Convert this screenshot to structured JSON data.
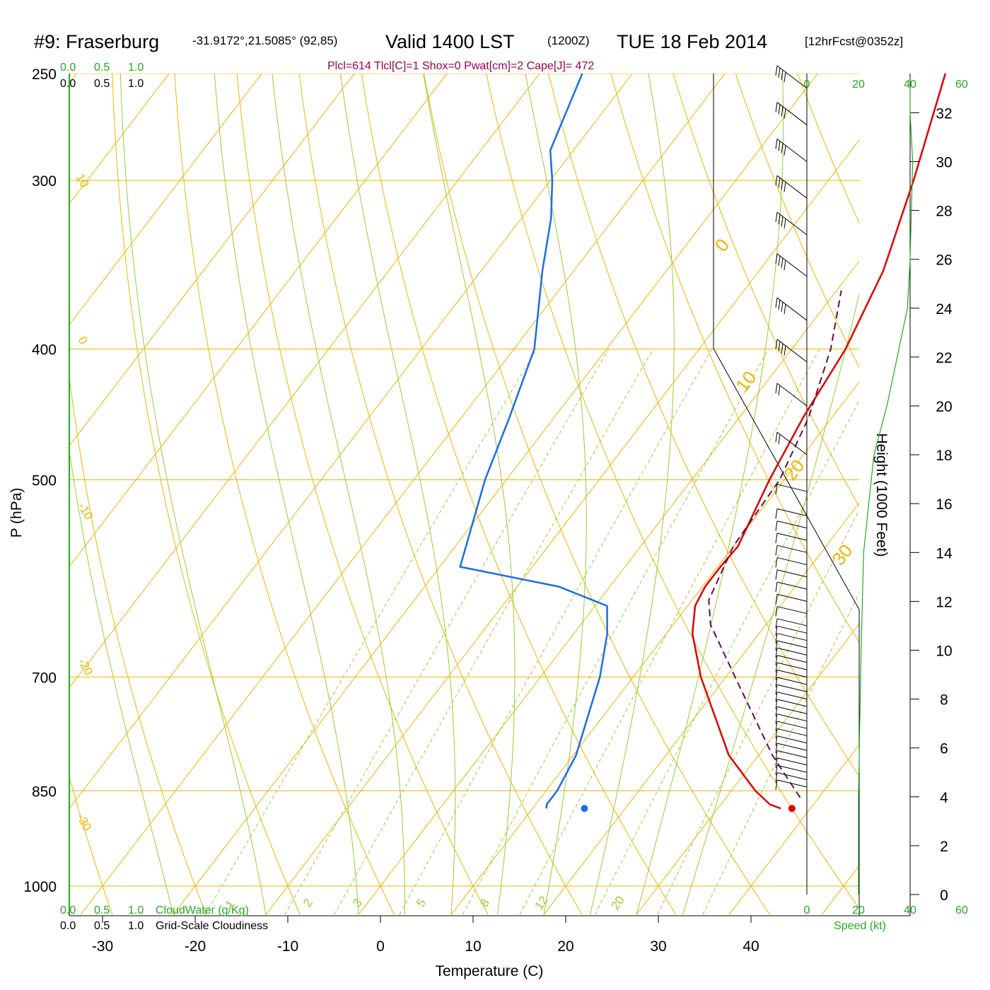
{
  "header": {
    "station": "#9: Fraserburg",
    "coords": "-31.9172°,21.5085° (92,85)",
    "valid": "Valid 1400 LST",
    "zulu": "(1200Z)",
    "date": "TUE 18 Feb 2014",
    "forecast": "[12hrFcst@0352z]",
    "params": "Plcl=614 Tlcl[C]=1 Shox=0 Pwat[cm]=2 Cape[J]= 472"
  },
  "colors": {
    "isobar": "#f0b400",
    "dry_adiabat": "#f0b400",
    "moist_adiabat": "#99cc33",
    "mixing_ratio": "#99cc33",
    "temperature": "#e00000",
    "dewpoint": "#1a6ee8",
    "parcel": "#6a0a4a",
    "wind_speed": "#22aa22",
    "axis_green": "#22aa22",
    "params_text": "#990055"
  },
  "chart_data": {
    "type": "line",
    "title": "#9: Fraserburg",
    "xlabel": "Temperature (C)",
    "ylabel": "P (hPa)",
    "right_ylabel": "Height (1000 Feet)",
    "pressure_ticks": [
      250,
      300,
      400,
      500,
      700,
      850,
      1000
    ],
    "temperature_ticks": [
      -30,
      -20,
      -10,
      0,
      10,
      20,
      30,
      40
    ],
    "height_ticks": [
      0,
      2,
      4,
      6,
      8,
      10,
      12,
      14,
      16,
      18,
      20,
      22,
      24,
      26,
      28,
      30,
      32
    ],
    "speed_ticks": [
      0,
      20,
      40,
      60
    ],
    "speed_label": "Speed (kt)",
    "cloud_scale": [
      "0.0",
      "0.5",
      "1.0"
    ],
    "cloudwater_label": "CloudWater (g/Kg)",
    "cloudiness_label": "Grid-Scale Cloudiness",
    "dry_adiabat_labels": [
      "10",
      "0",
      "-10",
      "-20",
      "-30"
    ],
    "isotherm_labels": [
      "0",
      "10",
      "20",
      "30"
    ],
    "mixing_ratio_labels": [
      "1",
      "2",
      "3",
      "5",
      "8",
      "12",
      "20"
    ],
    "series": [
      {
        "name": "Temperature",
        "points": [
          [
            876,
            36.8
          ],
          [
            870,
            35.3
          ],
          [
            850,
            32.6
          ],
          [
            800,
            26.8
          ],
          [
            700,
            17.3
          ],
          [
            650,
            12.8
          ],
          [
            620,
            10.8
          ],
          [
            600,
            10.3
          ],
          [
            580,
            10.3
          ],
          [
            560,
            10.5
          ],
          [
            500,
            8.4
          ],
          [
            450,
            6.9
          ],
          [
            400,
            5.8
          ],
          [
            350,
            3.4
          ],
          [
            300,
            -0.8
          ],
          [
            250,
            -6.2
          ]
        ]
      },
      {
        "name": "Dewpoint",
        "points": [
          [
            876,
            11.5
          ],
          [
            870,
            11.2
          ],
          [
            850,
            11.2
          ],
          [
            800,
            10.3
          ],
          [
            700,
            6.4
          ],
          [
            650,
            3.6
          ],
          [
            620,
            1.3
          ],
          [
            600,
            -5.5
          ],
          [
            580,
            -17.8
          ],
          [
            500,
            -22.3
          ],
          [
            450,
            -24.8
          ],
          [
            400,
            -27.8
          ],
          [
            350,
            -33.4
          ],
          [
            320,
            -36.8
          ],
          [
            300,
            -39.8
          ],
          [
            285,
            -42.5
          ],
          [
            250,
            -45.4
          ]
        ]
      },
      {
        "name": "Parcel",
        "points": [
          [
            860,
            38.0
          ],
          [
            800,
            31.5
          ],
          [
            700,
            21.0
          ],
          [
            640,
            14.0
          ],
          [
            614,
            11.8
          ],
          [
            560,
            10.0
          ],
          [
            500,
            9.5
          ],
          [
            450,
            7.5
          ],
          [
            400,
            4.2
          ],
          [
            362,
            0.5
          ]
        ]
      }
    ],
    "surface_temperature": {
      "p": 876,
      "t": 38.0
    },
    "surface_dewpoint": {
      "p": 876,
      "t": 15.6
    },
    "wind_speed_profile": [
      [
        0,
        20
      ],
      [
        4,
        20
      ],
      [
        10,
        21
      ],
      [
        14,
        22
      ],
      [
        18,
        26
      ],
      [
        20,
        31
      ],
      [
        22,
        35
      ],
      [
        24,
        39
      ],
      [
        26,
        40
      ],
      [
        30,
        41
      ],
      [
        32,
        40
      ],
      [
        33,
        40
      ]
    ],
    "wind_barb_heights": [
      4.4,
      4.7,
      5.0,
      5.3,
      5.6,
      5.9,
      6.2,
      6.5,
      6.8,
      7.1,
      7.4,
      7.7,
      8.0,
      8.3,
      8.6,
      8.9,
      9.2,
      9.5,
      9.8,
      10.1,
      10.4,
      10.7,
      11.0,
      11.5,
      12.0,
      12.5,
      13.0,
      13.5,
      14.0,
      14.5,
      15.0,
      15.5,
      16.5,
      18.0,
      20.0,
      21.8,
      23.5,
      25.3,
      27.0,
      28.5,
      30.0,
      31.5,
      33.0
    ]
  }
}
